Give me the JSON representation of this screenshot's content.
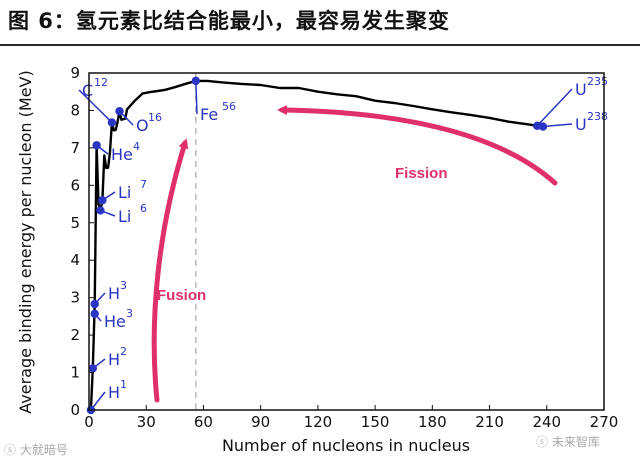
{
  "title": "图 6：氢元素比结合能最小，最容易发生聚变",
  "watermarks": {
    "left": "ⓢ 大就暗号",
    "right": "ⓢ 未来智库"
  },
  "colors": {
    "curve": "#000000",
    "isotope": "#2b35c4",
    "arrow": "#e0306a",
    "dashed": "#b9b9b9"
  },
  "chart_data": {
    "type": "line",
    "xlabel": "Number of nucleons in nucleus",
    "ylabel": "Average binding energy per nucleon (MeV)",
    "xlim": [
      0,
      270
    ],
    "ylim": [
      0,
      9
    ],
    "xticks": [
      "0",
      "30",
      "60",
      "90",
      "120",
      "150",
      "180",
      "210",
      "240",
      "270"
    ],
    "yticks": [
      "0",
      "1",
      "2",
      "3",
      "4",
      "5",
      "6",
      "7",
      "8",
      "9"
    ],
    "curve": [
      [
        1,
        0
      ],
      [
        2,
        1.11
      ],
      [
        3,
        2.8
      ],
      [
        4,
        7.07
      ],
      [
        5,
        5.5
      ],
      [
        6,
        5.33
      ],
      [
        7,
        5.6
      ],
      [
        8,
        6.8
      ],
      [
        9,
        6.46
      ],
      [
        10,
        6.47
      ],
      [
        11,
        6.9
      ],
      [
        12,
        7.68
      ],
      [
        13,
        7.47
      ],
      [
        14,
        7.48
      ],
      [
        15,
        7.7
      ],
      [
        16,
        7.98
      ],
      [
        17,
        7.75
      ],
      [
        18,
        7.77
      ],
      [
        19,
        7.78
      ],
      [
        20,
        8.03
      ],
      [
        24,
        8.26
      ],
      [
        28,
        8.45
      ],
      [
        32,
        8.49
      ],
      [
        36,
        8.52
      ],
      [
        40,
        8.55
      ],
      [
        45,
        8.62
      ],
      [
        50,
        8.7
      ],
      [
        56,
        8.79
      ],
      [
        62,
        8.79
      ],
      [
        70,
        8.75
      ],
      [
        80,
        8.71
      ],
      [
        90,
        8.68
      ],
      [
        100,
        8.6
      ],
      [
        110,
        8.6
      ],
      [
        120,
        8.5
      ],
      [
        130,
        8.43
      ],
      [
        140,
        8.38
      ],
      [
        150,
        8.26
      ],
      [
        160,
        8.2
      ],
      [
        170,
        8.12
      ],
      [
        180,
        8.03
      ],
      [
        190,
        7.95
      ],
      [
        200,
        7.88
      ],
      [
        210,
        7.8
      ],
      [
        220,
        7.7
      ],
      [
        230,
        7.63
      ],
      [
        235,
        7.59
      ],
      [
        238,
        7.57
      ]
    ],
    "dashed_line_x": 56,
    "isotopes": [
      {
        "sym": "H",
        "mass": "1",
        "A": 1,
        "E": 0,
        "side": "right"
      },
      {
        "sym": "H",
        "mass": "2",
        "A": 2,
        "E": 1.11,
        "side": "right"
      },
      {
        "sym": "He",
        "mass": "3",
        "A": 3,
        "E": 2.57,
        "side": "right"
      },
      {
        "sym": "H",
        "mass": "3",
        "A": 3,
        "E": 2.83,
        "side": "right"
      },
      {
        "sym": "Li",
        "mass": "6",
        "A": 6,
        "E": 5.33,
        "side": "right"
      },
      {
        "sym": "Li",
        "mass": "7",
        "A": 7,
        "E": 5.6,
        "side": "right"
      },
      {
        "sym": "He",
        "mass": "4",
        "A": 4,
        "E": 7.07,
        "side": "right"
      },
      {
        "sym": "C",
        "mass": "12",
        "A": 12,
        "E": 7.68,
        "side": "top"
      },
      {
        "sym": "O",
        "mass": "16",
        "A": 16,
        "E": 7.98,
        "side": "right"
      },
      {
        "sym": "Fe",
        "mass": "56",
        "A": 56,
        "E": 8.79,
        "side": "right"
      },
      {
        "sym": "U",
        "mass": "235",
        "A": 235,
        "E": 7.59,
        "side": "right"
      },
      {
        "sym": "U",
        "mass": "238",
        "A": 238,
        "E": 7.57,
        "side": "right"
      }
    ],
    "annotations": [
      {
        "text": "Fusion"
      },
      {
        "text": "Fission"
      }
    ]
  }
}
